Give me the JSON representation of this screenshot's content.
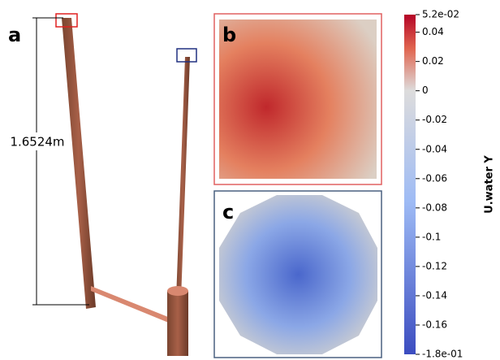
{
  "panels": {
    "a": "a",
    "b": "b",
    "c": "c"
  },
  "dimension": "1.6524m",
  "colorbar": {
    "title": "U.water Y",
    "lim": [
      -0.18,
      0.052
    ],
    "ticks": [
      {
        "value": 0.052,
        "label": "5.2e-02"
      },
      0.04,
      0.02,
      0,
      -0.02,
      -0.04,
      -0.06,
      -0.08,
      -0.1,
      -0.12,
      -0.14,
      -0.16,
      {
        "value": -0.18,
        "label": "-1.8e-01"
      }
    ]
  }
}
